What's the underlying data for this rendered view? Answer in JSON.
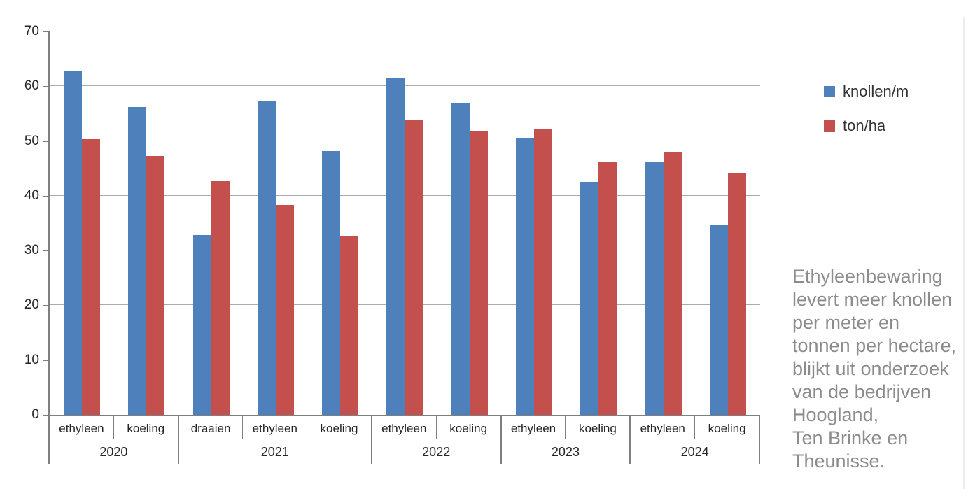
{
  "chart_data": {
    "type": "bar",
    "title": "",
    "xlabel": "",
    "ylabel": "",
    "ylim": [
      0,
      70
    ],
    "ytick_step": 10,
    "yticks": [
      0,
      10,
      20,
      30,
      40,
      50,
      60,
      70
    ],
    "grid": true,
    "legend_position": "right",
    "series": [
      {
        "name": "knollen/m",
        "color": "#4E81BC"
      },
      {
        "name": "ton/ha",
        "color": "#C4504E"
      }
    ],
    "groups": [
      {
        "year": "2020",
        "categories": [
          {
            "label": "ethyleen",
            "values": [
              62.9,
              50.5
            ]
          },
          {
            "label": "koeling",
            "values": [
              56.2,
              47.3
            ]
          }
        ]
      },
      {
        "year": "2021",
        "categories": [
          {
            "label": "draaien",
            "values": [
              32.8,
              42.7
            ]
          },
          {
            "label": "ethyleen",
            "values": [
              57.4,
              38.3
            ]
          },
          {
            "label": "koeling",
            "values": [
              48.2,
              32.7
            ]
          }
        ]
      },
      {
        "year": "2022",
        "categories": [
          {
            "label": "ethyleen",
            "values": [
              61.6,
              53.8
            ]
          },
          {
            "label": "koeling",
            "values": [
              57.0,
              51.9
            ]
          }
        ]
      },
      {
        "year": "2023",
        "categories": [
          {
            "label": "ethyleen",
            "values": [
              50.6,
              52.2
            ]
          },
          {
            "label": "koeling",
            "values": [
              42.5,
              46.2
            ]
          }
        ]
      },
      {
        "year": "2024",
        "categories": [
          {
            "label": "ethyleen",
            "values": [
              46.2,
              48.0
            ]
          },
          {
            "label": "koeling",
            "values": [
              34.7,
              44.2
            ]
          }
        ]
      }
    ]
  },
  "annotation": {
    "color": "#8C8C8C",
    "lines": [
      "Ethyleenbewaring",
      "levert meer knollen",
      "per meter en",
      "tonnen per hectare,",
      "blijkt uit onderzoek",
      "van de bedrijven",
      "Hoogland,",
      "Ten Brinke en",
      "Theunisse."
    ]
  },
  "axis": {
    "line_color": "#7F7F7F",
    "gridline_color": "#ABABAB",
    "label_color": "#262626"
  }
}
